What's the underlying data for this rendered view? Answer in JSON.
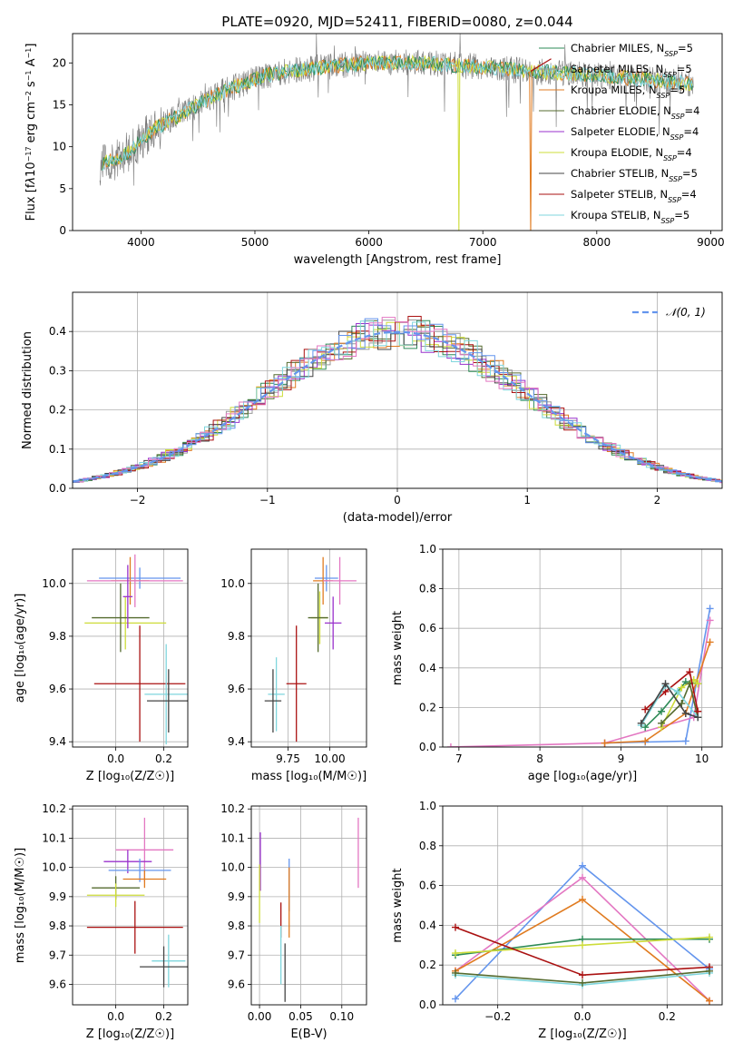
{
  "title": "PLATE=0920, MJD=52411, FIBERID=0080, z=0.044",
  "colors": {
    "chabrier_miles": "#2e8b57",
    "salpeter_miles": "#999999",
    "kroupa_miles": "#e07b20",
    "chabrier_elodie": "#556b2f",
    "salpeter_elodie": "#9932cc",
    "kroupa_elodie": "#cddc39",
    "chabrier_stelib": "#444444",
    "salpeter_stelib": "#aa1111",
    "kroupa_stelib": "#7fd6dd",
    "blue": "#6495ed",
    "pink": "#e377c2",
    "grid": "#b0b0b0"
  },
  "chart_data": [
    {
      "id": "spectrum",
      "type": "line",
      "xlabel": "wavelength [Angstrom, rest frame]",
      "ylabel_html": "Flux [f<tspan font-style='italic'>λ</tspan>10<tspan baseline-shift='super' font-size='8'>−17</tspan> erg cm<tspan baseline-shift='super' font-size='8'>−2</tspan> s<tspan baseline-shift='super' font-size='8'>−1</tspan> A<tspan baseline-shift='super' font-size='8'>−1</tspan>]",
      "xlim": [
        3400,
        9100
      ],
      "ylim": [
        0,
        23.5
      ],
      "xticks": [
        4000,
        5000,
        6000,
        7000,
        8000,
        9000
      ],
      "yticks": [
        0,
        5,
        10,
        15,
        20
      ],
      "legend": [
        {
          "base": "Chabrier MILES, N",
          "sub": "SSP",
          "val": "=5",
          "color": "#2e8b57"
        },
        {
          "base": "Salpeter MILES, N",
          "sub": "SSP",
          "val": "=5",
          "color": "#999999"
        },
        {
          "base": "Kroupa MILES, N",
          "sub": "SSP",
          "val": "=5",
          "color": "#e07b20"
        },
        {
          "base": "Chabrier ELODIE, N",
          "sub": "SSP",
          "val": "=4",
          "color": "#556b2f"
        },
        {
          "base": "Salpeter ELODIE, N",
          "sub": "SSP",
          "val": "=4",
          "color": "#9932cc"
        },
        {
          "base": "Kroupa ELODIE, N",
          "sub": "SSP",
          "val": "=4",
          "color": "#cddc39"
        },
        {
          "base": "Chabrier STELIB, N",
          "sub": "SSP",
          "val": "=5",
          "color": "#444444"
        },
        {
          "base": "Salpeter STELIB, N",
          "sub": "SSP",
          "val": "=4",
          "color": "#aa1111"
        },
        {
          "base": "Kroupa STELIB, N",
          "sub": "SSP",
          "val": "=5",
          "color": "#7fd6dd"
        }
      ],
      "continuum_x": [
        3650,
        3800,
        3950,
        4100,
        4300,
        4500,
        4700,
        4900,
        5100,
        5300,
        5600,
        6000,
        6500,
        7000,
        7400,
        7800,
        8200,
        8600,
        8850
      ],
      "continuum_y": [
        8.0,
        8.5,
        10.0,
        12.0,
        13.5,
        15.0,
        16.5,
        17.5,
        18.5,
        19.0,
        19.5,
        20.0,
        20.0,
        19.5,
        19.0,
        18.7,
        18.3,
        17.8,
        17.5
      ],
      "dropout_x": [
        6790,
        7420
      ]
    },
    {
      "id": "residuals",
      "type": "histogram",
      "xlabel": "(data-model)/error",
      "ylabel": "Normed distribution",
      "xlim": [
        -2.5,
        2.5
      ],
      "ylim": [
        0,
        0.5
      ],
      "xticks": [
        -2,
        -1,
        0,
        1,
        2
      ],
      "yticks": [
        0,
        0.1,
        0.2,
        0.3,
        0.4
      ],
      "legend": "𝒩(0, 1)",
      "bin_width": 0.1
    },
    {
      "id": "age_z",
      "type": "errorbar",
      "xlabel": "Z [log₁₀(Z/Z☉)]",
      "ylabel": "age  [log₁₀(age/yr)]",
      "xlim": [
        -0.18,
        0.3
      ],
      "ylim": [
        9.38,
        10.13
      ],
      "xticks": [
        0.0,
        0.2
      ],
      "yticks": [
        9.4,
        9.6,
        9.8,
        10.0
      ],
      "points": [
        {
          "x": 0.1,
          "y": 10.02,
          "xerr": 0.17,
          "yerr": 0.04,
          "color": "#6495ed"
        },
        {
          "x": 0.06,
          "y": 10.01,
          "xerr": 0.08,
          "yerr": 0.09,
          "color": "#e07b20"
        },
        {
          "x": 0.08,
          "y": 10.01,
          "xerr": 0.2,
          "yerr": 0.1,
          "color": "#e377c2"
        },
        {
          "x": 0.04,
          "y": 9.85,
          "xerr": 0.17,
          "yerr": 0.1,
          "color": "#cddc39"
        },
        {
          "x": 0.02,
          "y": 9.87,
          "xerr": 0.12,
          "yerr": 0.13,
          "color": "#556b2f"
        },
        {
          "x": 0.05,
          "y": 9.95,
          "xerr": 0.02,
          "yerr": 0.12,
          "color": "#9932cc"
        },
        {
          "x": 0.1,
          "y": 9.62,
          "xerr": 0.19,
          "yerr": 0.22,
          "color": "#aa1111"
        },
        {
          "x": 0.21,
          "y": 9.58,
          "xerr": 0.09,
          "yerr": 0.19,
          "color": "#7fd6dd"
        },
        {
          "x": 0.22,
          "y": 9.555,
          "xerr": 0.09,
          "yerr": 0.12,
          "color": "#444444"
        }
      ]
    },
    {
      "id": "age_mass",
      "type": "errorbar",
      "xlabel": "mass [log₁₀(M/M☉)]",
      "ylabel": "",
      "xlim": [
        9.53,
        10.22
      ],
      "ylim": [
        9.38,
        10.13
      ],
      "xticks": [
        9.75,
        10.0
      ],
      "yticks": [
        9.4,
        9.6,
        9.8,
        10.0
      ],
      "points": [
        {
          "x": 9.98,
          "y": 10.02,
          "xerr": 0.07,
          "yerr": 0.05,
          "color": "#6495ed"
        },
        {
          "x": 9.96,
          "y": 10.01,
          "xerr": 0.06,
          "yerr": 0.09,
          "color": "#e07b20"
        },
        {
          "x": 10.06,
          "y": 10.01,
          "xerr": 0.1,
          "yerr": 0.09,
          "color": "#e377c2"
        },
        {
          "x": 9.94,
          "y": 9.87,
          "xerr": 0.05,
          "yerr": 0.1,
          "color": "#cddc39"
        },
        {
          "x": 9.93,
          "y": 9.87,
          "xerr": 0.06,
          "yerr": 0.13,
          "color": "#556b2f"
        },
        {
          "x": 10.02,
          "y": 9.85,
          "xerr": 0.05,
          "yerr": 0.1,
          "color": "#9932cc"
        },
        {
          "x": 9.8,
          "y": 9.62,
          "xerr": 0.06,
          "yerr": 0.22,
          "color": "#aa1111"
        },
        {
          "x": 9.68,
          "y": 9.58,
          "xerr": 0.05,
          "yerr": 0.14,
          "color": "#7fd6dd"
        },
        {
          "x": 9.66,
          "y": 9.555,
          "xerr": 0.05,
          "yerr": 0.12,
          "color": "#444444"
        }
      ]
    },
    {
      "id": "mw_age",
      "type": "line",
      "xlabel": "age  [log₁₀(age/yr)]",
      "ylabel": "mass weight",
      "xlim": [
        6.8,
        10.25
      ],
      "ylim": [
        0,
        1.0
      ],
      "xticks": [
        7,
        8,
        9,
        10
      ],
      "yticks": [
        0.0,
        0.2,
        0.4,
        0.6,
        0.8,
        1.0
      ],
      "series": [
        {
          "color": "#6495ed",
          "x": [
            8.8,
            9.3,
            9.8,
            10.1
          ],
          "y": [
            0.02,
            0.025,
            0.03,
            0.7
          ]
        },
        {
          "color": "#e377c2",
          "x": [
            6.9,
            8.8,
            9.9,
            10.1
          ],
          "y": [
            0.0,
            0.02,
            0.15,
            0.64
          ]
        },
        {
          "color": "#e07b20",
          "x": [
            8.8,
            9.3,
            9.8,
            10.1
          ],
          "y": [
            0.02,
            0.03,
            0.17,
            0.53
          ]
        },
        {
          "color": "#2e8b57",
          "x": [
            9.3,
            9.5,
            9.8,
            9.95
          ],
          "y": [
            0.1,
            0.18,
            0.33,
            0.32
          ]
        },
        {
          "color": "#cddc39",
          "x": [
            9.5,
            9.75,
            9.9,
            9.95
          ],
          "y": [
            0.1,
            0.3,
            0.34,
            0.32
          ]
        },
        {
          "color": "#556b2f",
          "x": [
            9.5,
            9.75,
            9.85,
            9.95
          ],
          "y": [
            0.12,
            0.22,
            0.32,
            0.15
          ]
        },
        {
          "color": "#aa1111",
          "x": [
            9.3,
            9.55,
            9.85,
            9.95
          ],
          "y": [
            0.19,
            0.28,
            0.38,
            0.18
          ]
        },
        {
          "color": "#7fd6dd",
          "x": [
            9.25,
            9.55,
            9.7,
            9.95
          ],
          "y": [
            0.11,
            0.31,
            0.28,
            0.15
          ]
        },
        {
          "color": "#444444",
          "x": [
            9.25,
            9.55,
            9.8,
            9.95
          ],
          "y": [
            0.12,
            0.32,
            0.17,
            0.15
          ]
        }
      ]
    },
    {
      "id": "mass_z",
      "type": "errorbar",
      "xlabel": "Z [log₁₀(Z/Z☉)]",
      "ylabel": "mass [log₁₀(M/M☉)]",
      "xlim": [
        -0.18,
        0.3
      ],
      "ylim": [
        9.53,
        10.21
      ],
      "xticks": [
        0.0,
        0.2
      ],
      "yticks": [
        9.6,
        9.7,
        9.8,
        9.9,
        10.0,
        10.1,
        10.2
      ],
      "points": [
        {
          "x": 0.12,
          "y": 10.06,
          "xerr": 0.12,
          "yerr": 0.11,
          "color": "#e377c2"
        },
        {
          "x": 0.05,
          "y": 10.02,
          "xerr": 0.1,
          "yerr": 0.04,
          "color": "#9932cc"
        },
        {
          "x": 0.1,
          "y": 9.99,
          "xerr": 0.13,
          "yerr": 0.04,
          "color": "#6495ed"
        },
        {
          "x": 0.12,
          "y": 9.96,
          "xerr": 0.09,
          "yerr": 0.03,
          "color": "#e07b20"
        },
        {
          "x": 0.0,
          "y": 9.93,
          "xerr": 0.1,
          "yerr": 0.04,
          "color": "#556b2f"
        },
        {
          "x": 0.0,
          "y": 9.905,
          "xerr": 0.12,
          "yerr": 0.04,
          "color": "#cddc39"
        },
        {
          "x": 0.08,
          "y": 9.795,
          "xerr": 0.2,
          "yerr": 0.09,
          "color": "#aa1111"
        },
        {
          "x": 0.22,
          "y": 9.68,
          "xerr": 0.07,
          "yerr": 0.09,
          "color": "#7fd6dd"
        },
        {
          "x": 0.2,
          "y": 9.66,
          "xerr": 0.1,
          "yerr": 0.07,
          "color": "#444444"
        }
      ]
    },
    {
      "id": "mass_ebv",
      "type": "errorbar",
      "xlabel": "E(B-V)",
      "ylabel": "",
      "xlim": [
        -0.01,
        0.13
      ],
      "ylim": [
        9.53,
        10.21
      ],
      "xticks": [
        0.0,
        0.05,
        0.1
      ],
      "yticks": [
        9.6,
        9.7,
        9.8,
        9.9,
        10.0,
        10.1,
        10.2
      ],
      "points": [
        {
          "x": 0.12,
          "y": 10.05,
          "xerr": 0.0,
          "yerr": 0.12,
          "color": "#e377c2"
        },
        {
          "x": 0.001,
          "y": 10.02,
          "xerr": 0.0,
          "yerr": 0.1,
          "color": "#9932cc"
        },
        {
          "x": 0.036,
          "y": 9.94,
          "xerr": 0.0,
          "yerr": 0.09,
          "color": "#6495ed"
        },
        {
          "x": 0.036,
          "y": 9.88,
          "xerr": 0.0,
          "yerr": 0.12,
          "color": "#e07b20"
        },
        {
          "x": 0.0,
          "y": 9.91,
          "xerr": 0.0,
          "yerr": 0.1,
          "color": "#cddc39"
        },
        {
          "x": 0.026,
          "y": 9.82,
          "xerr": 0.0,
          "yerr": 0.06,
          "color": "#aa1111"
        },
        {
          "x": 0.026,
          "y": 9.7,
          "xerr": 0.0,
          "yerr": 0.1,
          "color": "#7fd6dd"
        },
        {
          "x": 0.031,
          "y": 9.64,
          "xerr": 0.0,
          "yerr": 0.1,
          "color": "#444444"
        }
      ]
    },
    {
      "id": "mw_z",
      "type": "line",
      "xlabel": "Z [log₁₀(Z/Z☉)]",
      "ylabel": "mass weight",
      "xlim": [
        -0.33,
        0.33
      ],
      "ylim": [
        0,
        1.0
      ],
      "xticks": [
        -0.2,
        0.0,
        0.2
      ],
      "yticks": [
        0.0,
        0.2,
        0.4,
        0.6,
        0.8,
        1.0
      ],
      "series": [
        {
          "color": "#6495ed",
          "x": [
            -0.3,
            0.0,
            0.3
          ],
          "y": [
            0.03,
            0.7,
            0.18
          ]
        },
        {
          "color": "#e377c2",
          "x": [
            -0.3,
            0.0,
            0.3
          ],
          "y": [
            0.17,
            0.64,
            0.02
          ]
        },
        {
          "color": "#e07b20",
          "x": [
            -0.3,
            0.0,
            0.3
          ],
          "y": [
            0.17,
            0.53,
            0.02
          ]
        },
        {
          "color": "#2e8b57",
          "x": [
            -0.3,
            0.0,
            0.3
          ],
          "y": [
            0.25,
            0.33,
            0.33
          ]
        },
        {
          "color": "#cddc39",
          "x": [
            -0.3,
            0.0,
            0.3
          ],
          "y": [
            0.26,
            0.3,
            0.34
          ]
        },
        {
          "color": "#aa1111",
          "x": [
            -0.3,
            0.0,
            0.3
          ],
          "y": [
            0.39,
            0.15,
            0.19
          ]
        },
        {
          "color": "#7fd6dd",
          "x": [
            -0.3,
            0.0,
            0.3
          ],
          "y": [
            0.15,
            0.1,
            0.16
          ]
        },
        {
          "color": "#556b2f",
          "x": [
            -0.3,
            0.0,
            0.3
          ],
          "y": [
            0.16,
            0.11,
            0.17
          ]
        }
      ]
    }
  ]
}
